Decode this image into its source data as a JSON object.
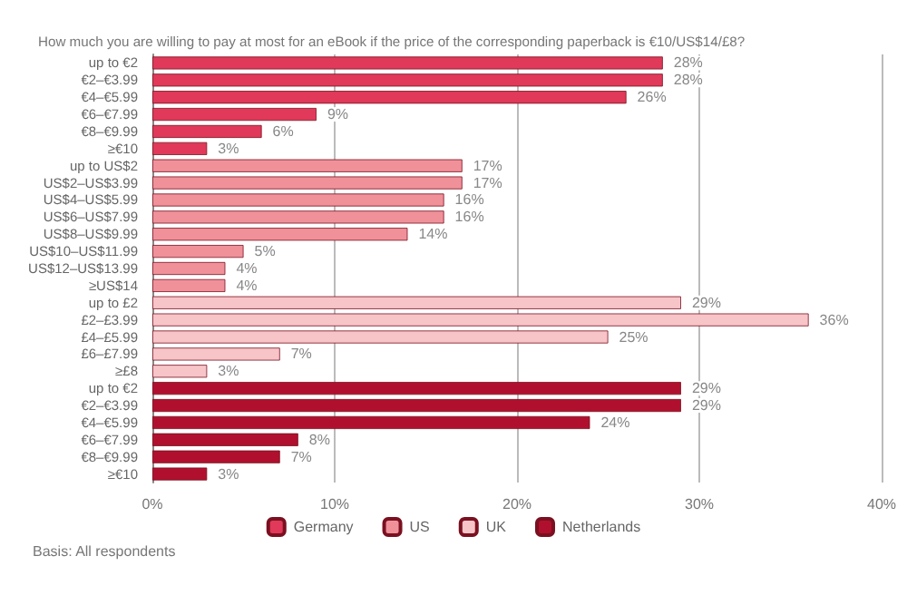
{
  "chart_data": {
    "type": "bar",
    "orientation": "horizontal",
    "title": "How much you are willing to pay at most for an eBook if the price of the corresponding paperback is €10/US$14/£8?",
    "categories": [
      "up to €2",
      "€2–€3.99",
      "€4–€5.99",
      "€6–€7.99",
      "€8–€9.99",
      "≥€10",
      "up to US$2",
      "US$2–US$3.99",
      "US$4–US$5.99",
      "US$6–US$7.99",
      "US$8–US$9.99",
      "US$10–US$11.99",
      "US$12–US$13.99",
      "≥US$14",
      "up to £2",
      "£2–£3.99",
      "£4–£5.99",
      "£6–£7.99",
      "≥£8",
      "up to €2",
      "€2–€3.99",
      "€4–€5.99",
      "€6–€7.99",
      "€8–€9.99",
      "≥€10"
    ],
    "series": [
      {
        "name": "Germany",
        "color": "#e0395a",
        "values": [
          28,
          28,
          26,
          9,
          6,
          3,
          null,
          null,
          null,
          null,
          null,
          null,
          null,
          null,
          null,
          null,
          null,
          null,
          null,
          null,
          null,
          null,
          null,
          null,
          null
        ],
        "value_labels": [
          "28%",
          "28%",
          "26%",
          "9%",
          "6%",
          "3%",
          null,
          null,
          null,
          null,
          null,
          null,
          null,
          null,
          null,
          null,
          null,
          null,
          null,
          null,
          null,
          null,
          null,
          null,
          null
        ]
      },
      {
        "name": "US",
        "color": "#f0919a",
        "values": [
          null,
          null,
          null,
          null,
          null,
          null,
          17,
          17,
          16,
          16,
          14,
          5,
          4,
          4,
          null,
          null,
          null,
          null,
          null,
          null,
          null,
          null,
          null,
          null,
          null
        ],
        "value_labels": [
          null,
          null,
          null,
          null,
          null,
          null,
          "17%",
          "17%",
          "16%",
          "16%",
          "14%",
          "5%",
          "4%",
          "4%",
          null,
          null,
          null,
          null,
          null,
          null,
          null,
          null,
          null,
          null,
          null
        ]
      },
      {
        "name": "UK",
        "color": "#f7c4c8",
        "values": [
          null,
          null,
          null,
          null,
          null,
          null,
          null,
          null,
          null,
          null,
          null,
          null,
          null,
          null,
          29,
          36,
          25,
          7,
          3,
          null,
          null,
          null,
          null,
          null,
          null
        ],
        "value_labels": [
          null,
          null,
          null,
          null,
          null,
          null,
          null,
          null,
          null,
          null,
          null,
          null,
          null,
          null,
          "29%",
          "36%",
          "25%",
          "7%",
          "3%",
          null,
          null,
          null,
          null,
          null,
          null
        ]
      },
      {
        "name": "Netherlands",
        "color": "#b0102e",
        "values": [
          null,
          null,
          null,
          null,
          null,
          null,
          null,
          null,
          null,
          null,
          null,
          null,
          null,
          null,
          null,
          null,
          null,
          null,
          null,
          29,
          29,
          24,
          8,
          7,
          3
        ],
        "value_labels": [
          null,
          null,
          null,
          null,
          null,
          null,
          null,
          null,
          null,
          null,
          null,
          null,
          null,
          null,
          null,
          null,
          null,
          null,
          null,
          "29%",
          "29%",
          "24%",
          "8%",
          "7%",
          "3%"
        ]
      }
    ],
    "xlim": [
      0,
      40
    ],
    "xticks": [
      {
        "value": 0,
        "label": "0%"
      },
      {
        "value": 10,
        "label": "10%"
      },
      {
        "value": 20,
        "label": "20%"
      },
      {
        "value": 30,
        "label": "30%"
      },
      {
        "value": 40,
        "label": "40%"
      }
    ],
    "grid": "x",
    "legend": "bottom",
    "annotations": [
      "Basis: All respondents"
    ]
  }
}
